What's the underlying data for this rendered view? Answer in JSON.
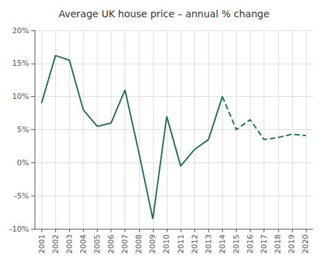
{
  "chart_data": {
    "type": "line",
    "title": "Average UK house price – annual % change",
    "series": [
      {
        "color": "#1a6b5a",
        "line_style": "solid",
        "x": [
          2001,
          2002,
          2003,
          2004,
          2005,
          2006,
          2007,
          2008,
          2009,
          2010,
          2011,
          2012,
          2013,
          2014
        ],
        "values": [
          9.0,
          16.2,
          15.5,
          8.0,
          5.5,
          6.0,
          11.0,
          1.5,
          -8.5,
          7.0,
          -0.5,
          2.0,
          3.5,
          10.0
        ]
      },
      {
        "color": "#1a6b5a",
        "line_style": "dashed",
        "x": [
          2014,
          2015,
          2016,
          2017,
          2018,
          2019,
          2020
        ],
        "values": [
          10.0,
          5.0,
          6.5,
          3.5,
          3.8,
          4.3,
          4.1
        ]
      }
    ],
    "xlim": [
      2000.5,
      2020.5
    ],
    "xticks": [
      2001,
      2002,
      2003,
      2004,
      2005,
      2006,
      2007,
      2008,
      2009,
      2010,
      2011,
      2012,
      2013,
      2014,
      2015,
      2016,
      2017,
      2018,
      2019,
      2020
    ],
    "ylim": [
      -10,
      20
    ],
    "yticks": [
      {
        "value": -10,
        "label": "-10%"
      },
      {
        "value": -5,
        "label": "-5%"
      },
      {
        "value": 0,
        "label": "0%"
      },
      {
        "value": 5,
        "label": "5%"
      },
      {
        "value": 10,
        "label": "10%"
      },
      {
        "value": 15,
        "label": "15%"
      },
      {
        "value": 20,
        "label": "20%"
      }
    ],
    "grid": true
  }
}
